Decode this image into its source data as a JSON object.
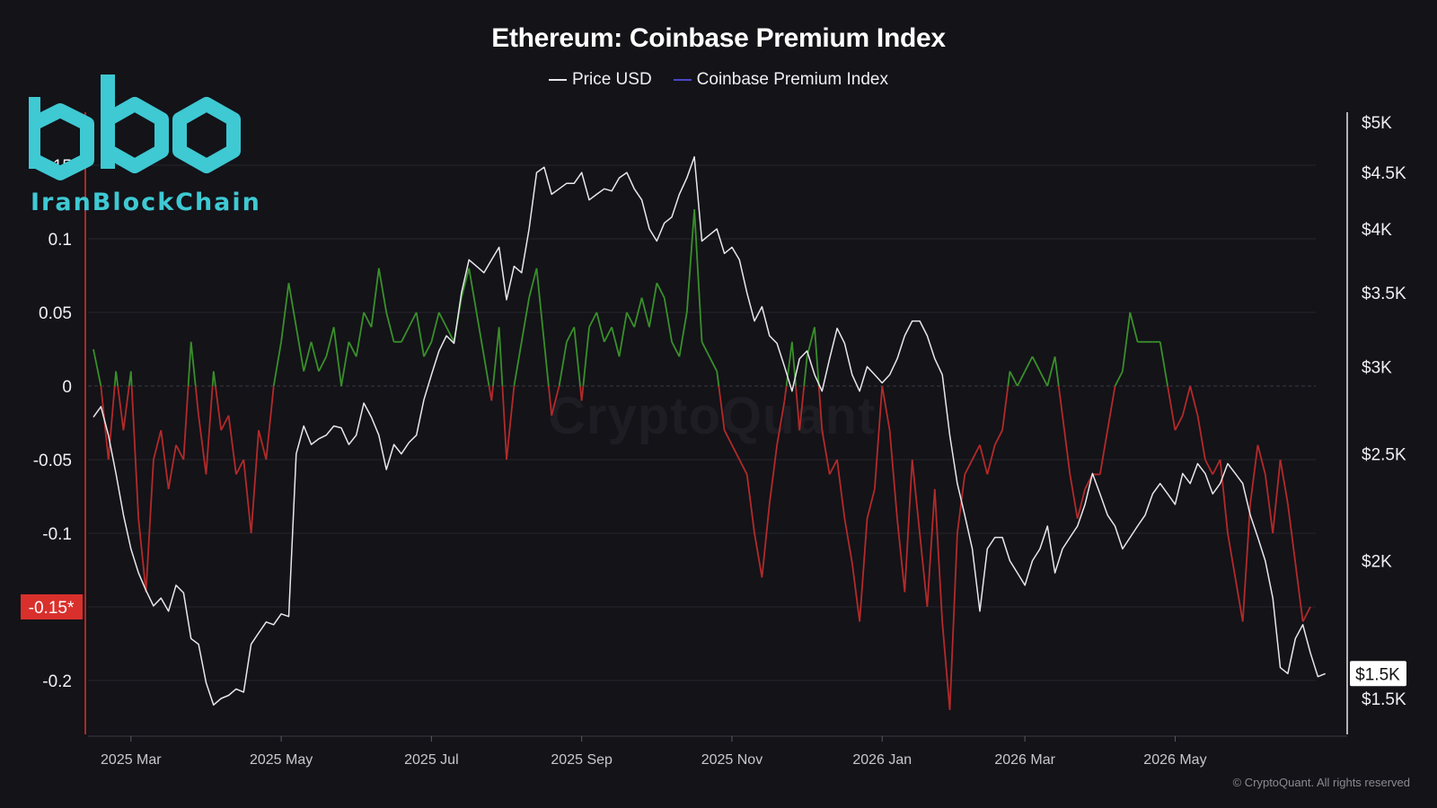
{
  "title": "Ethereum: Coinbase Premium Index",
  "legend": [
    {
      "label": "Price USD",
      "color": "#e8e8ec"
    },
    {
      "label": "Coinbase Premium Index",
      "color": "#4a47c8"
    }
  ],
  "logo": {
    "text": "IranBlockChain",
    "color": "#3ec9d3",
    "icon": "iranblockchain-logo-icon"
  },
  "watermark": "CryptoQuant",
  "copyright": "© CryptoQuant. All rights reserved",
  "colors": {
    "background": "#131318",
    "positive": "#3a8f2a",
    "negative": "#b32a2a",
    "price": "#e8e8ec",
    "marker": "#d9302c",
    "grid": "#26262d"
  },
  "chart_data": {
    "type": "line",
    "title": "Ethereum: Coinbase Premium Index",
    "x_ticks": [
      "2025 Mar",
      "2025 May",
      "2025 Jul",
      "2025 Sep",
      "2025 Nov",
      "2026 Jan",
      "2026 Mar",
      "2026 May"
    ],
    "x_tick_index": [
      5,
      25,
      45,
      65,
      85,
      105,
      124,
      144
    ],
    "left_axis": {
      "ticks": [
        "0.15",
        "0.1",
        "0.05",
        "0",
        "-0.05",
        "-0.1",
        "-0.15",
        "-0.2"
      ],
      "values": [
        0.15,
        0.1,
        0.05,
        0,
        -0.05,
        -0.1,
        -0.15,
        -0.2
      ],
      "ylim": [
        -0.237,
        0.163
      ]
    },
    "right_axis": {
      "ticks": [
        "$5K",
        "$4.5K",
        "$4K",
        "$3.5K",
        "$3K",
        "$2.5K",
        "$2K",
        "$1.5K"
      ],
      "values": [
        5000,
        4500,
        4000,
        3500,
        3000,
        2500,
        2000,
        1500
      ],
      "scale": "log",
      "ylim": [
        1500,
        5000
      ]
    },
    "marker_left": {
      "label": "-0.15*",
      "value": -0.15
    },
    "marker_right": {
      "label": "$1.5K",
      "value": 1580
    },
    "series": [
      {
        "name": "Coinbase Premium Index",
        "axis": "left",
        "values": [
          0.025,
          0.0,
          -0.05,
          0.01,
          -0.03,
          0.01,
          -0.09,
          -0.14,
          -0.05,
          -0.03,
          -0.07,
          -0.04,
          -0.05,
          0.03,
          -0.02,
          -0.06,
          0.01,
          -0.03,
          -0.02,
          -0.06,
          -0.05,
          -0.1,
          -0.03,
          -0.05,
          0.0,
          0.03,
          0.07,
          0.04,
          0.01,
          0.03,
          0.01,
          0.02,
          0.04,
          0.0,
          0.03,
          0.02,
          0.05,
          0.04,
          0.08,
          0.05,
          0.03,
          0.03,
          0.04,
          0.05,
          0.02,
          0.03,
          0.05,
          0.04,
          0.03,
          0.06,
          0.08,
          0.05,
          0.02,
          -0.01,
          0.04,
          -0.05,
          0.0,
          0.03,
          0.06,
          0.08,
          0.03,
          -0.02,
          0.0,
          0.03,
          0.04,
          -0.01,
          0.04,
          0.05,
          0.03,
          0.04,
          0.02,
          0.05,
          0.04,
          0.06,
          0.04,
          0.07,
          0.06,
          0.03,
          0.02,
          0.05,
          0.12,
          0.03,
          0.02,
          0.01,
          -0.03,
          -0.04,
          -0.05,
          -0.06,
          -0.1,
          -0.13,
          -0.08,
          -0.04,
          -0.01,
          0.03,
          -0.03,
          0.02,
          0.04,
          -0.03,
          -0.06,
          -0.05,
          -0.09,
          -0.12,
          -0.16,
          -0.09,
          -0.07,
          0.0,
          -0.03,
          -0.09,
          -0.14,
          -0.05,
          -0.1,
          -0.15,
          -0.07,
          -0.16,
          -0.22,
          -0.1,
          -0.06,
          -0.05,
          -0.04,
          -0.06,
          -0.04,
          -0.03,
          0.01,
          0.0,
          0.01,
          0.02,
          0.01,
          0.0,
          0.02,
          -0.02,
          -0.06,
          -0.09,
          -0.07,
          -0.06,
          -0.06,
          -0.03,
          0.0,
          0.01,
          0.05,
          0.03,
          0.03,
          0.03,
          0.03,
          0.0,
          -0.03,
          -0.02,
          0.0,
          -0.02,
          -0.05,
          -0.06,
          -0.05,
          -0.1,
          -0.13,
          -0.16,
          -0.08,
          -0.04,
          -0.06,
          -0.1,
          -0.05,
          -0.08,
          -0.12,
          -0.16,
          -0.15
        ]
      },
      {
        "name": "Price USD",
        "axis": "right",
        "values": [
          2700,
          2760,
          2600,
          2400,
          2200,
          2050,
          1950,
          1880,
          1820,
          1850,
          1800,
          1900,
          1870,
          1700,
          1680,
          1550,
          1480,
          1500,
          1510,
          1530,
          1520,
          1680,
          1720,
          1760,
          1750,
          1790,
          1780,
          2500,
          2650,
          2550,
          2580,
          2600,
          2650,
          2640,
          2550,
          2600,
          2780,
          2700,
          2600,
          2420,
          2550,
          2500,
          2560,
          2600,
          2800,
          2950,
          3100,
          3200,
          3150,
          3500,
          3750,
          3700,
          3650,
          3750,
          3850,
          3450,
          3700,
          3650,
          4000,
          4500,
          4550,
          4300,
          4350,
          4400,
          4400,
          4500,
          4250,
          4300,
          4350,
          4330,
          4450,
          4500,
          4350,
          4250,
          4000,
          3900,
          4050,
          4100,
          4300,
          4450,
          4650,
          3900,
          3950,
          4000,
          3800,
          3850,
          3750,
          3500,
          3300,
          3400,
          3200,
          3150,
          3000,
          2850,
          3050,
          3100,
          2950,
          2850,
          3050,
          3250,
          3150,
          2950,
          2850,
          3000,
          2950,
          2900,
          2950,
          3050,
          3200,
          3300,
          3300,
          3200,
          3050,
          2950,
          2600,
          2350,
          2200,
          2050,
          1800,
          2050,
          2100,
          2100,
          2000,
          1950,
          1900,
          2000,
          2050,
          2150,
          1950,
          2050,
          2100,
          2150,
          2250,
          2400,
          2300,
          2200,
          2150,
          2050,
          2100,
          2150,
          2200,
          2300,
          2350,
          2300,
          2250,
          2400,
          2350,
          2450,
          2400,
          2300,
          2350,
          2450,
          2400,
          2350,
          2200,
          2100,
          2000,
          1850,
          1600,
          1580,
          1700,
          1750,
          1650,
          1570,
          1580
        ]
      }
    ],
    "grid": true,
    "legend_position": "top-center"
  }
}
